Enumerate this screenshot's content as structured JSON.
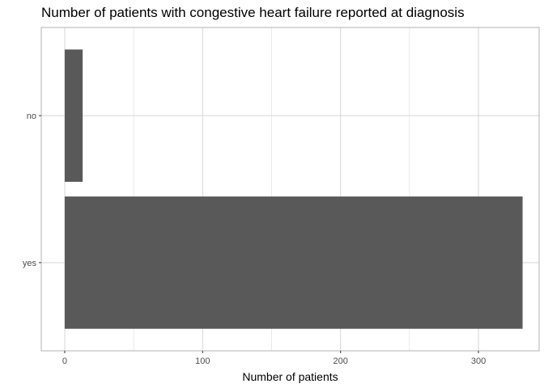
{
  "chart_data": {
    "type": "bar",
    "orientation": "horizontal",
    "title": "Number of patients with congestive heart failure reported at diagnosis",
    "xlabel": "Number of patients",
    "ylabel": "",
    "categories": [
      "yes",
      "no"
    ],
    "values": [
      332,
      13
    ],
    "xlim": [
      -17,
      344
    ],
    "xticks": [
      0,
      100,
      200,
      300
    ],
    "xtick_labels": [
      "0",
      "100",
      "200",
      "300"
    ],
    "grid": true,
    "legend": "none",
    "colors": {
      "bar": "#595959",
      "grid": "#d9d9d9",
      "panel_border": "#b3b3b3",
      "tick_label": "#4d4d4d",
      "text": "#000000"
    }
  }
}
